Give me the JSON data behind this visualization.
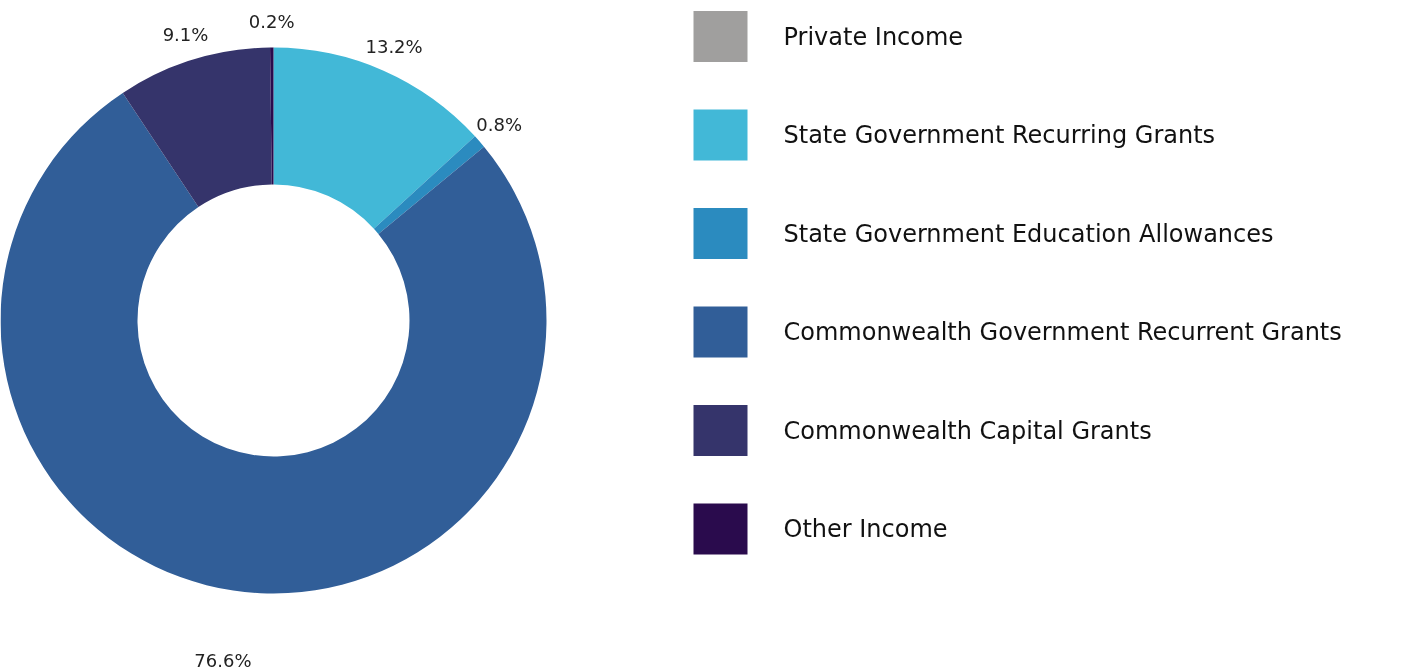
{
  "chart_data": {
    "type": "donut",
    "categories": [
      "Private Income",
      "State Government Recurring Grants",
      "State Government Education Allowances",
      "Commonwealth Government Recurrent Grants",
      "Commonwealth Capital Grants",
      "Other Income"
    ],
    "values": [
      0,
      13.2,
      0.8,
      76.6,
      9.1,
      0.2
    ],
    "colors": [
      "#a09f9e",
      "#42b8d7",
      "#2b8bbf",
      "#315e98",
      "#35346b",
      "#2a0b4d"
    ],
    "value_labels": [
      null,
      "13.2%",
      "0.8%",
      "76.6%",
      "9.1%",
      "0.2%"
    ],
    "legend": "right"
  }
}
